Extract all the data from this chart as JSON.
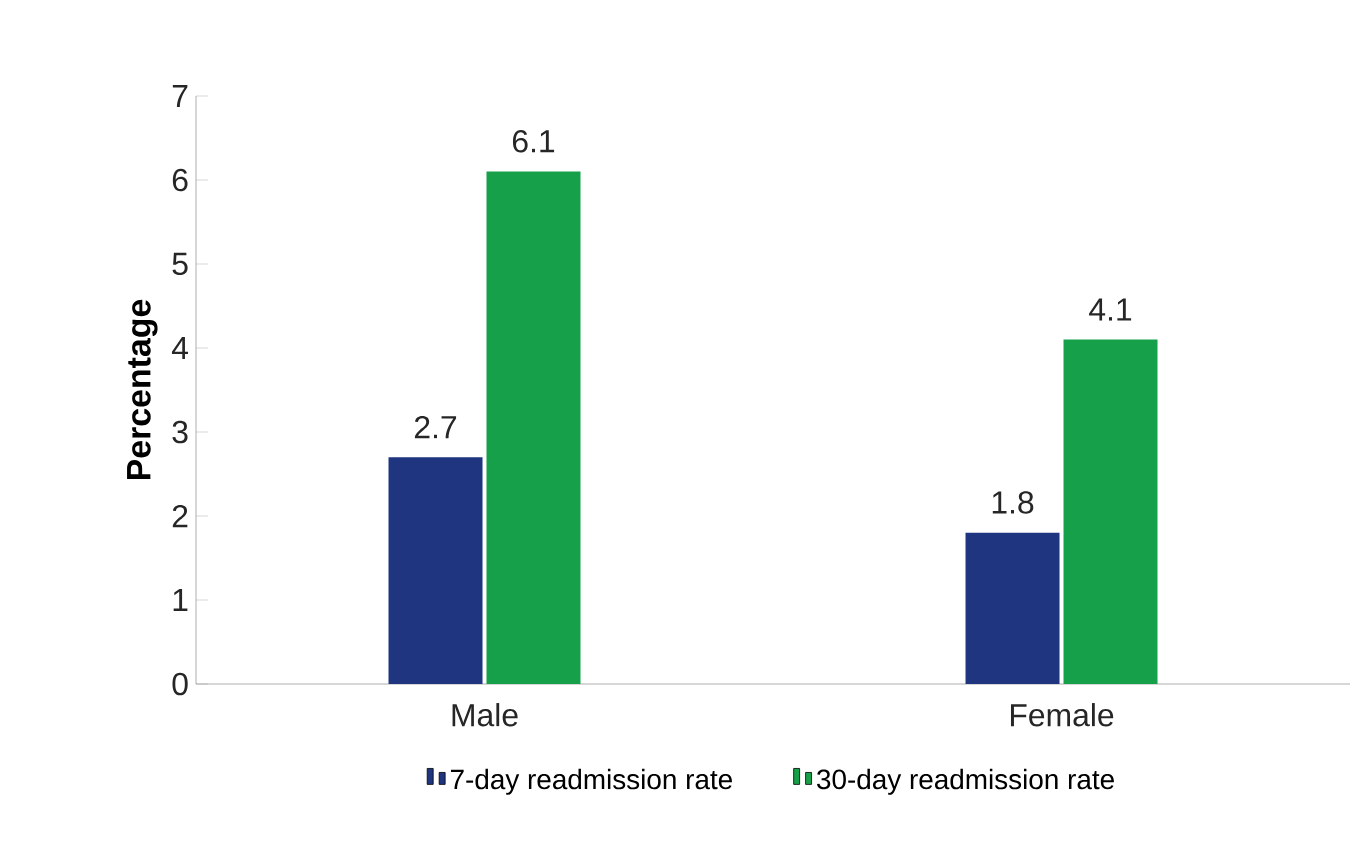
{
  "chart_data": {
    "type": "bar",
    "ylabel": "Percentage",
    "categories": [
      "Male",
      "Female"
    ],
    "series": [
      {
        "name": "7-day readmission rate",
        "color": "#1f3580",
        "values": [
          2.7,
          1.8
        ]
      },
      {
        "name": "30-day readmission rate",
        "color": "#17a04a",
        "values": [
          6.1,
          4.1
        ]
      }
    ],
    "ylim": [
      0,
      7
    ],
    "yticks": [
      0,
      1,
      2,
      3,
      4,
      5,
      6,
      7
    ],
    "data_labels": true,
    "legend": "bottom",
    "grid": false
  }
}
